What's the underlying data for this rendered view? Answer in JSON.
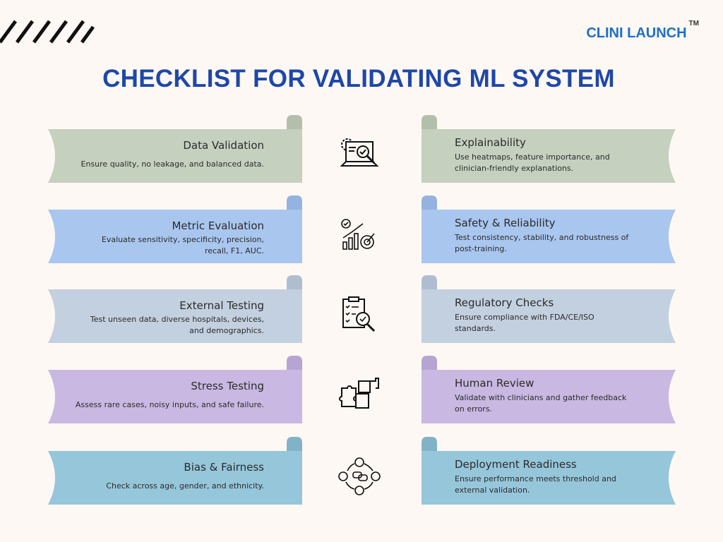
{
  "brand": {
    "name": "CLINI LAUNCH",
    "tm": "TM",
    "color": "#1f6fc8"
  },
  "title": {
    "text": "CHECKLIST FOR VALIDATING ML SYSTEM",
    "color": "#1f47a8"
  },
  "left": [
    {
      "title": "Data Validation",
      "desc": [
        "Ensure quality, no leakage, and balanced data."
      ],
      "color": "#c5d0bf",
      "curl": "#b3bfac"
    },
    {
      "title": "Metric Evaluation",
      "desc": [
        "Evaluate sensitivity, specificity, precision,",
        "recall, F1, AUC."
      ],
      "color": "#a9c6ef",
      "curl": "#94b3df"
    },
    {
      "title": "External Testing",
      "desc": [
        "Test unseen data, diverse hospitals, devices,",
        "and demographics."
      ],
      "color": "#c3d0e0",
      "curl": "#afbdd0"
    },
    {
      "title": "Stress Testing",
      "desc": [
        "Assess rare cases, noisy inputs, and safe failure."
      ],
      "color": "#c9b8e2",
      "curl": "#b6a4d2"
    },
    {
      "title": "Bias & Fairness",
      "desc": [
        "Check across age, gender, and ethnicity."
      ],
      "color": "#96c6da",
      "curl": "#82b2c6"
    }
  ],
  "right": [
    {
      "title": "Explainability",
      "desc": [
        "Use heatmaps, feature importance, and",
        "clinician-friendly explanations."
      ],
      "color": "#c5d0bf",
      "curl": "#b3bfac"
    },
    {
      "title": "Safety & Reliability",
      "desc": [
        "Test consistency, stability, and robustness of",
        "post-training."
      ],
      "color": "#a9c6ef",
      "curl": "#94b3df"
    },
    {
      "title": "Regulatory Checks",
      "desc": [
        "Ensure compliance with FDA/CE/ISO",
        "standards."
      ],
      "color": "#c3d0e0",
      "curl": "#afbdd0"
    },
    {
      "title": "Human Review",
      "desc": [
        "Validate with clinicians and gather feedback",
        "on errors."
      ],
      "color": "#c9b8e2",
      "curl": "#b6a4d2"
    },
    {
      "title": "Deployment Readiness",
      "desc": [
        "Ensure performance meets threshold and",
        "external validation."
      ],
      "color": "#96c6da",
      "curl": "#82b2c6"
    }
  ],
  "icons": [
    "laptop-magnifier-icon",
    "growth-chart-target-icon",
    "clipboard-checklist-icon",
    "puzzle-pieces-icon",
    "people-communication-cycle-icon"
  ]
}
